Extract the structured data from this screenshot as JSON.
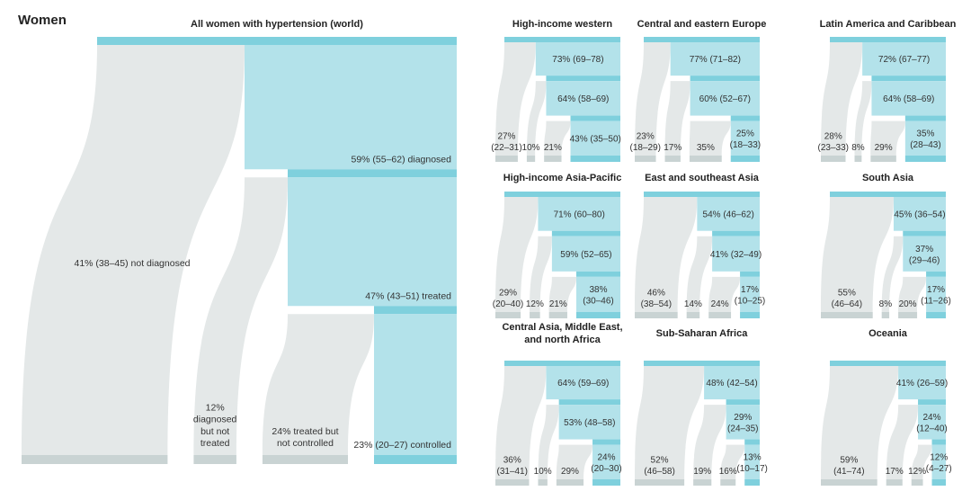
{
  "page_title": "Women",
  "colors": {
    "cyan_dark": "#7fd0dd",
    "cyan_light": "#b3e2ea",
    "grey_bar": "#c9d3d3",
    "grey_flow": "#e4e8e8",
    "text": "#333333"
  },
  "chart_data": [
    {
      "type": "sankey",
      "title": "All women with hypertension (world)",
      "stages": [
        {
          "value": 59,
          "label": "59% (55–62) diagnosed"
        },
        {
          "value": 47,
          "label": "47% (43–51) treated"
        },
        {
          "value": 23,
          "label": "23% (20–27) controlled"
        }
      ],
      "dropouts": [
        {
          "value": 41,
          "label": "41% (38–45) not diagnosed"
        },
        {
          "value": 12,
          "label": "12% diagnosed but not treated"
        },
        {
          "value": 24,
          "label": "24% treated but not controlled"
        }
      ]
    },
    {
      "type": "sankey",
      "title": "High-income western",
      "stages": [
        {
          "value": 73,
          "label": "73% (69–78)"
        },
        {
          "value": 64,
          "label": "64% (58–69)"
        },
        {
          "value": 43,
          "label": "43% (35–50)"
        }
      ],
      "dropouts": [
        {
          "value": 27,
          "label": "27% (22–31)"
        },
        {
          "value": 10,
          "label": "10%"
        },
        {
          "value": 21,
          "label": "21%"
        }
      ]
    },
    {
      "type": "sankey",
      "title": "Central and eastern Europe",
      "stages": [
        {
          "value": 77,
          "label": "77% (71–82)"
        },
        {
          "value": 60,
          "label": "60% (52–67)"
        },
        {
          "value": 25,
          "label": "25% (18–33)"
        }
      ],
      "dropouts": [
        {
          "value": 23,
          "label": "23% (18–29)"
        },
        {
          "value": 17,
          "label": "17%"
        },
        {
          "value": 35,
          "label": "35%"
        }
      ]
    },
    {
      "type": "sankey",
      "title": "Latin America and Caribbean",
      "stages": [
        {
          "value": 72,
          "label": "72% (67–77)"
        },
        {
          "value": 64,
          "label": "64% (58–69)"
        },
        {
          "value": 35,
          "label": "35% (28–43)"
        }
      ],
      "dropouts": [
        {
          "value": 28,
          "label": "28% (23–33)"
        },
        {
          "value": 8,
          "label": "8%"
        },
        {
          "value": 29,
          "label": "29%"
        }
      ]
    },
    {
      "type": "sankey",
      "title": "High-income Asia-Pacific",
      "stages": [
        {
          "value": 71,
          "label": "71% (60–80)"
        },
        {
          "value": 59,
          "label": "59% (52–65)"
        },
        {
          "value": 38,
          "label": "38% (30–46)"
        }
      ],
      "dropouts": [
        {
          "value": 29,
          "label": "29% (20–40)"
        },
        {
          "value": 12,
          "label": "12%"
        },
        {
          "value": 21,
          "label": "21%"
        }
      ]
    },
    {
      "type": "sankey",
      "title": "East and southeast Asia",
      "stages": [
        {
          "value": 54,
          "label": "54% (46–62)"
        },
        {
          "value": 41,
          "label": "41% (32–49)"
        },
        {
          "value": 17,
          "label": "17% (10–25)"
        }
      ],
      "dropouts": [
        {
          "value": 46,
          "label": "46% (38–54)"
        },
        {
          "value": 14,
          "label": "14%"
        },
        {
          "value": 24,
          "label": "24%"
        }
      ]
    },
    {
      "type": "sankey",
      "title": "South Asia",
      "stages": [
        {
          "value": 45,
          "label": "45% (36–54)"
        },
        {
          "value": 37,
          "label": "37% (29–46)"
        },
        {
          "value": 17,
          "label": "17% (11–26)"
        }
      ],
      "dropouts": [
        {
          "value": 55,
          "label": "55% (46–64)"
        },
        {
          "value": 8,
          "label": "8%"
        },
        {
          "value": 20,
          "label": "20%"
        }
      ]
    },
    {
      "type": "sankey",
      "title": "Central Asia, Middle East, and north Africa",
      "stages": [
        {
          "value": 64,
          "label": "64% (59–69)"
        },
        {
          "value": 53,
          "label": "53% (48–58)"
        },
        {
          "value": 24,
          "label": "24% (20–30)"
        }
      ],
      "dropouts": [
        {
          "value": 36,
          "label": "36% (31–41)"
        },
        {
          "value": 10,
          "label": "10%"
        },
        {
          "value": 29,
          "label": "29%"
        }
      ]
    },
    {
      "type": "sankey",
      "title": "Sub-Saharan Africa",
      "stages": [
        {
          "value": 48,
          "label": "48% (42–54)"
        },
        {
          "value": 29,
          "label": "29% (24–35)"
        },
        {
          "value": 13,
          "label": "13% (10–17)"
        }
      ],
      "dropouts": [
        {
          "value": 52,
          "label": "52% (46–58)"
        },
        {
          "value": 19,
          "label": "19%"
        },
        {
          "value": 16,
          "label": "16%"
        }
      ]
    },
    {
      "type": "sankey",
      "title": "Oceania",
      "stages": [
        {
          "value": 41,
          "label": "41% (26–59)"
        },
        {
          "value": 24,
          "label": "24% (12–40)"
        },
        {
          "value": 12,
          "label": "12% (4–27)"
        }
      ],
      "dropouts": [
        {
          "value": 59,
          "label": "59% (41–74)"
        },
        {
          "value": 17,
          "label": "17%"
        },
        {
          "value": 12,
          "label": "12%"
        }
      ]
    }
  ]
}
